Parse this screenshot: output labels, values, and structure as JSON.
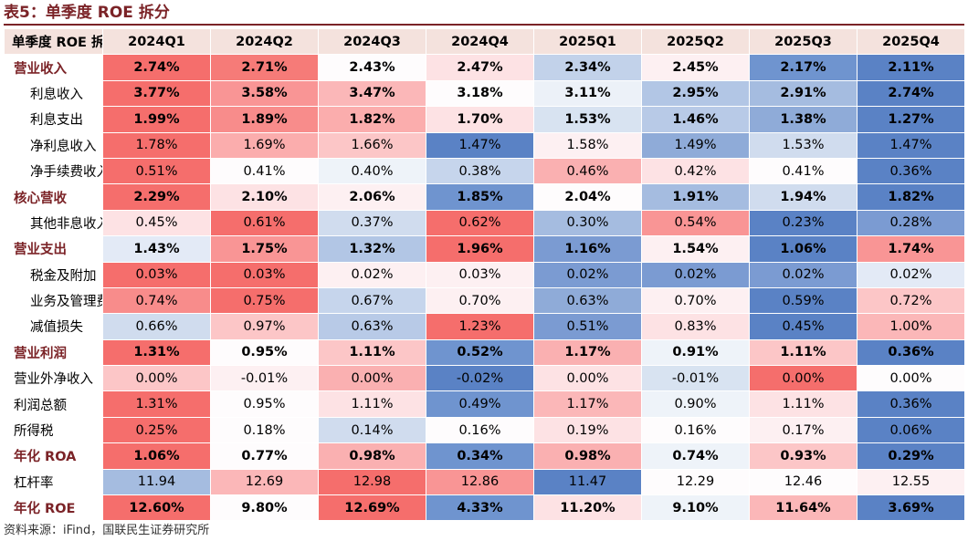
{
  "title": "表5：单季度 ROE 拆分",
  "header": [
    "单季度 ROE 拆分",
    "2024Q1",
    "2024Q2",
    "2024Q3",
    "2024Q4",
    "2025Q1",
    "2025Q2",
    "2025Q3",
    "2025Q4"
  ],
  "rows": [
    {
      "label": "营业收入",
      "level": "main",
      "bold": true,
      "cells": [
        {
          "v": "2.74%",
          "c": "#f56e6c"
        },
        {
          "v": "2.71%",
          "c": "#f67b78"
        },
        {
          "v": "2.43%",
          "c": "#fefcfd"
        },
        {
          "v": "2.47%",
          "c": "#fde2e4"
        },
        {
          "v": "2.34%",
          "c": "#c2d2ea"
        },
        {
          "v": "2.45%",
          "c": "#fdf0f2"
        },
        {
          "v": "2.17%",
          "c": "#6f94cf"
        },
        {
          "v": "2.11%",
          "c": "#5a82c5"
        }
      ]
    },
    {
      "label": "利息收入",
      "level": "sub",
      "bold": true,
      "cells": [
        {
          "v": "3.77%",
          "c": "#f56e6c"
        },
        {
          "v": "3.58%",
          "c": "#f99595"
        },
        {
          "v": "3.47%",
          "c": "#fbb7b8"
        },
        {
          "v": "3.18%",
          "c": "#fefcfd"
        },
        {
          "v": "3.11%",
          "c": "#ecf1f8"
        },
        {
          "v": "2.95%",
          "c": "#b2c6e5"
        },
        {
          "v": "2.91%",
          "c": "#a5bce0"
        },
        {
          "v": "2.74%",
          "c": "#5a82c5"
        }
      ]
    },
    {
      "label": "利息支出",
      "level": "sub",
      "bold": true,
      "cells": [
        {
          "v": "1.99%",
          "c": "#f56e6c"
        },
        {
          "v": "1.89%",
          "c": "#f88c8b"
        },
        {
          "v": "1.82%",
          "c": "#fbadad"
        },
        {
          "v": "1.70%",
          "c": "#fde2e4"
        },
        {
          "v": "1.53%",
          "c": "#d8e3f1"
        },
        {
          "v": "1.46%",
          "c": "#b8cae7"
        },
        {
          "v": "1.38%",
          "c": "#8fabd8"
        },
        {
          "v": "1.27%",
          "c": "#5a82c5"
        }
      ]
    },
    {
      "label": "净利息收入",
      "level": "sub",
      "bold": false,
      "cells": [
        {
          "v": "1.78%",
          "c": "#f56e6c"
        },
        {
          "v": "1.69%",
          "c": "#fbadad"
        },
        {
          "v": "1.66%",
          "c": "#fcc6c7"
        },
        {
          "v": "1.47%",
          "c": "#5a82c5"
        },
        {
          "v": "1.58%",
          "c": "#fdf0f2"
        },
        {
          "v": "1.49%",
          "c": "#8fabd8"
        },
        {
          "v": "1.53%",
          "c": "#d0dcee"
        },
        {
          "v": "1.47%",
          "c": "#5a82c5"
        }
      ]
    },
    {
      "label": "净手续费收入",
      "level": "sub",
      "bold": false,
      "cells": [
        {
          "v": "0.51%",
          "c": "#f56e6c"
        },
        {
          "v": "0.41%",
          "c": "#fefcfd"
        },
        {
          "v": "0.40%",
          "c": "#eef3f9"
        },
        {
          "v": "0.38%",
          "c": "#c6d5ec"
        },
        {
          "v": "0.46%",
          "c": "#fab0b1"
        },
        {
          "v": "0.42%",
          "c": "#fde2e4"
        },
        {
          "v": "0.41%",
          "c": "#fefcfd"
        },
        {
          "v": "0.36%",
          "c": "#5a82c5"
        }
      ]
    },
    {
      "label": "核心营收",
      "level": "main",
      "bold": true,
      "cells": [
        {
          "v": "2.29%",
          "c": "#f56e6c"
        },
        {
          "v": "2.10%",
          "c": "#fde2e4"
        },
        {
          "v": "2.06%",
          "c": "#fdf0f2"
        },
        {
          "v": "1.85%",
          "c": "#6f94cf"
        },
        {
          "v": "2.04%",
          "c": "#fefcfd"
        },
        {
          "v": "1.91%",
          "c": "#a5bce0"
        },
        {
          "v": "1.94%",
          "c": "#d0dcee"
        },
        {
          "v": "1.82%",
          "c": "#5a82c5"
        }
      ]
    },
    {
      "label": "其他非息收入",
      "level": "sub",
      "bold": false,
      "cells": [
        {
          "v": "0.45%",
          "c": "#fde2e4"
        },
        {
          "v": "0.61%",
          "c": "#f56e6c"
        },
        {
          "v": "0.37%",
          "c": "#d0dcee"
        },
        {
          "v": "0.62%",
          "c": "#f56e6c"
        },
        {
          "v": "0.30%",
          "c": "#a5bce0"
        },
        {
          "v": "0.54%",
          "c": "#f99595"
        },
        {
          "v": "0.23%",
          "c": "#5a82c5"
        },
        {
          "v": "0.28%",
          "c": "#7b9bd2"
        }
      ]
    },
    {
      "label": "营业支出",
      "level": "main",
      "bold": true,
      "cells": [
        {
          "v": "1.43%",
          "c": "#e3eaf6"
        },
        {
          "v": "1.75%",
          "c": "#f99595"
        },
        {
          "v": "1.32%",
          "c": "#b2c6e5"
        },
        {
          "v": "1.96%",
          "c": "#f56e6c"
        },
        {
          "v": "1.16%",
          "c": "#7b9bd2"
        },
        {
          "v": "1.54%",
          "c": "#fdf0f2"
        },
        {
          "v": "1.06%",
          "c": "#5a82c5"
        },
        {
          "v": "1.74%",
          "c": "#f99595"
        }
      ]
    },
    {
      "label": "税金及附加",
      "level": "sub",
      "bold": false,
      "cells": [
        {
          "v": "0.03%",
          "c": "#f56e6c"
        },
        {
          "v": "0.03%",
          "c": "#f56e6c"
        },
        {
          "v": "0.02%",
          "c": "#fdf0f2"
        },
        {
          "v": "0.03%",
          "c": "#fdf0f2"
        },
        {
          "v": "0.02%",
          "c": "#7b9bd2"
        },
        {
          "v": "0.02%",
          "c": "#7b9bd2"
        },
        {
          "v": "0.02%",
          "c": "#7b9bd2"
        },
        {
          "v": "0.02%",
          "c": "#e3eaf6"
        }
      ]
    },
    {
      "label": "业务及管理费",
      "level": "sub",
      "bold": false,
      "cells": [
        {
          "v": "0.74%",
          "c": "#f88c8b"
        },
        {
          "v": "0.75%",
          "c": "#f56e6c"
        },
        {
          "v": "0.67%",
          "c": "#c6d5ec"
        },
        {
          "v": "0.70%",
          "c": "#fdf0f2"
        },
        {
          "v": "0.63%",
          "c": "#8fabd8"
        },
        {
          "v": "0.70%",
          "c": "#fdf0f2"
        },
        {
          "v": "0.59%",
          "c": "#5a82c5"
        },
        {
          "v": "0.72%",
          "c": "#fcc6c7"
        }
      ]
    },
    {
      "label": "减值损失",
      "level": "sub",
      "bold": false,
      "cells": [
        {
          "v": "0.66%",
          "c": "#d0dcee"
        },
        {
          "v": "0.97%",
          "c": "#fcc6c7"
        },
        {
          "v": "0.63%",
          "c": "#b8cae7"
        },
        {
          "v": "1.23%",
          "c": "#f56e6c"
        },
        {
          "v": "0.51%",
          "c": "#7b9bd2"
        },
        {
          "v": "0.83%",
          "c": "#fde2e4"
        },
        {
          "v": "0.45%",
          "c": "#5a82c5"
        },
        {
          "v": "1.00%",
          "c": "#fbb7b8"
        }
      ]
    },
    {
      "label": "营业利润",
      "level": "main",
      "bold": true,
      "cells": [
        {
          "v": "1.31%",
          "c": "#f56e6c"
        },
        {
          "v": "0.95%",
          "c": "#fefcfd"
        },
        {
          "v": "1.11%",
          "c": "#fcc6c7"
        },
        {
          "v": "0.52%",
          "c": "#6f94cf"
        },
        {
          "v": "1.17%",
          "c": "#fab0b1"
        },
        {
          "v": "0.91%",
          "c": "#eef3f9"
        },
        {
          "v": "1.11%",
          "c": "#fcc6c7"
        },
        {
          "v": "0.36%",
          "c": "#5a82c5"
        }
      ]
    },
    {
      "label": "营业外净收入",
      "level": "main-plain",
      "bold": false,
      "cells": [
        {
          "v": "0.00%",
          "c": "#fcc6c7"
        },
        {
          "v": "-0.01%",
          "c": "#fdf0f2"
        },
        {
          "v": "0.00%",
          "c": "#fab0b1"
        },
        {
          "v": "-0.02%",
          "c": "#5a82c5"
        },
        {
          "v": "0.00%",
          "c": "#fde2e4"
        },
        {
          "v": "-0.01%",
          "c": "#d8e3f1"
        },
        {
          "v": "0.00%",
          "c": "#f56e6c"
        },
        {
          "v": "0.00%",
          "c": "#fefcfd"
        }
      ]
    },
    {
      "label": "利润总额",
      "level": "main-plain",
      "bold": false,
      "cells": [
        {
          "v": "1.31%",
          "c": "#f56e6c"
        },
        {
          "v": "0.95%",
          "c": "#fefcfd"
        },
        {
          "v": "1.11%",
          "c": "#fde2e4"
        },
        {
          "v": "0.49%",
          "c": "#6f94cf"
        },
        {
          "v": "1.17%",
          "c": "#fbb7b8"
        },
        {
          "v": "0.90%",
          "c": "#eef3f9"
        },
        {
          "v": "1.11%",
          "c": "#fde2e4"
        },
        {
          "v": "0.36%",
          "c": "#5a82c5"
        }
      ]
    },
    {
      "label": "所得税",
      "level": "main-plain",
      "bold": false,
      "cells": [
        {
          "v": "0.25%",
          "c": "#f56e6c"
        },
        {
          "v": "0.18%",
          "c": "#fefcfd"
        },
        {
          "v": "0.14%",
          "c": "#d0dcee"
        },
        {
          "v": "0.16%",
          "c": "#fefcfd"
        },
        {
          "v": "0.19%",
          "c": "#fde2e4"
        },
        {
          "v": "0.16%",
          "c": "#fefcfd"
        },
        {
          "v": "0.17%",
          "c": "#fdf0f2"
        },
        {
          "v": "0.06%",
          "c": "#5a82c5"
        }
      ]
    },
    {
      "label": "年化 ROA",
      "level": "main",
      "bold": true,
      "cells": [
        {
          "v": "1.06%",
          "c": "#f56e6c"
        },
        {
          "v": "0.77%",
          "c": "#fefcfd"
        },
        {
          "v": "0.98%",
          "c": "#fab0b1"
        },
        {
          "v": "0.34%",
          "c": "#6f94cf"
        },
        {
          "v": "0.98%",
          "c": "#fab0b1"
        },
        {
          "v": "0.74%",
          "c": "#eef3f9"
        },
        {
          "v": "0.93%",
          "c": "#fcc6c7"
        },
        {
          "v": "0.29%",
          "c": "#5a82c5"
        }
      ]
    },
    {
      "label": "杠杆率",
      "level": "main-plain",
      "bold": false,
      "cells": [
        {
          "v": "11.94",
          "c": "#a5bce0"
        },
        {
          "v": "12.69",
          "c": "#fbb7b8"
        },
        {
          "v": "12.98",
          "c": "#f56e6c"
        },
        {
          "v": "12.86",
          "c": "#f99595"
        },
        {
          "v": "11.47",
          "c": "#5a82c5"
        },
        {
          "v": "12.29",
          "c": "#fefcfd"
        },
        {
          "v": "12.46",
          "c": "#fefcfd"
        },
        {
          "v": "12.55",
          "c": "#fdf0f2"
        }
      ]
    },
    {
      "label": "年化 ROE",
      "level": "main",
      "bold": true,
      "cells": [
        {
          "v": "12.60%",
          "c": "#f56e6c"
        },
        {
          "v": "9.80%",
          "c": "#fefcfd"
        },
        {
          "v": "12.69%",
          "c": "#f56e6c"
        },
        {
          "v": "4.33%",
          "c": "#6f94cf"
        },
        {
          "v": "11.20%",
          "c": "#fde2e4"
        },
        {
          "v": "9.10%",
          "c": "#eef3f9"
        },
        {
          "v": "11.64%",
          "c": "#fbb7b8"
        },
        {
          "v": "3.69%",
          "c": "#5a82c5"
        }
      ]
    }
  ],
  "source": "资料来源：iFind，国联民生证券研究所"
}
